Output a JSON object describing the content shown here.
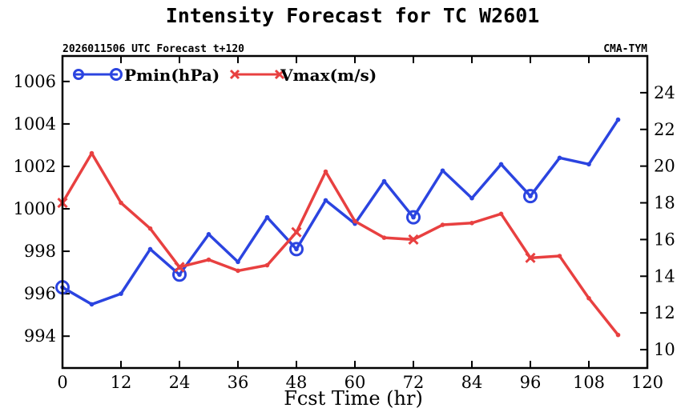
{
  "chart_data": {
    "type": "line",
    "title": "Intensity Forecast for TC W2601",
    "subtitle_left": "2026011506 UTC Forecast t+120",
    "subtitle_right": "CMA-TYM",
    "xlabel": "Fcst Time (hr)",
    "x": [
      0,
      6,
      12,
      18,
      24,
      30,
      36,
      42,
      48,
      54,
      60,
      66,
      72,
      78,
      84,
      90,
      96,
      102,
      108,
      114
    ],
    "xlim": [
      0,
      120
    ],
    "xticks": [
      0,
      12,
      24,
      36,
      48,
      60,
      72,
      84,
      96,
      108,
      120
    ],
    "y_left": {
      "label": "Pmin(hPa)",
      "lim": [
        992.5,
        1007.2
      ],
      "ticks": [
        994,
        996,
        998,
        1000,
        1002,
        1004,
        1006
      ]
    },
    "y_right": {
      "label": "Vmax(m/s)",
      "lim": [
        9.0,
        26.0
      ],
      "ticks": [
        10,
        12,
        14,
        16,
        18,
        20,
        22,
        24
      ]
    },
    "markers": {
      "circle_every_hr": 24
    },
    "series": [
      {
        "name": "Pmin(hPa)",
        "axis": "left",
        "color": "#2b44e0",
        "marker": "circle",
        "values": [
          996.3,
          995.5,
          996.0,
          998.1,
          996.9,
          998.8,
          997.5,
          999.6,
          998.1,
          1000.4,
          999.3,
          1001.3,
          999.6,
          1001.8,
          1000.5,
          1002.1,
          1000.6,
          1002.4,
          1002.1,
          1004.2
        ]
      },
      {
        "name": "Vmax(m/s)",
        "axis": "right",
        "color": "#e84040",
        "marker": "x",
        "values": [
          18.0,
          20.7,
          18.0,
          16.6,
          14.5,
          14.9,
          14.3,
          14.6,
          16.4,
          19.7,
          17.0,
          16.1,
          16.0,
          16.8,
          16.9,
          17.4,
          15.0,
          15.1,
          12.8,
          10.8
        ]
      }
    ]
  }
}
